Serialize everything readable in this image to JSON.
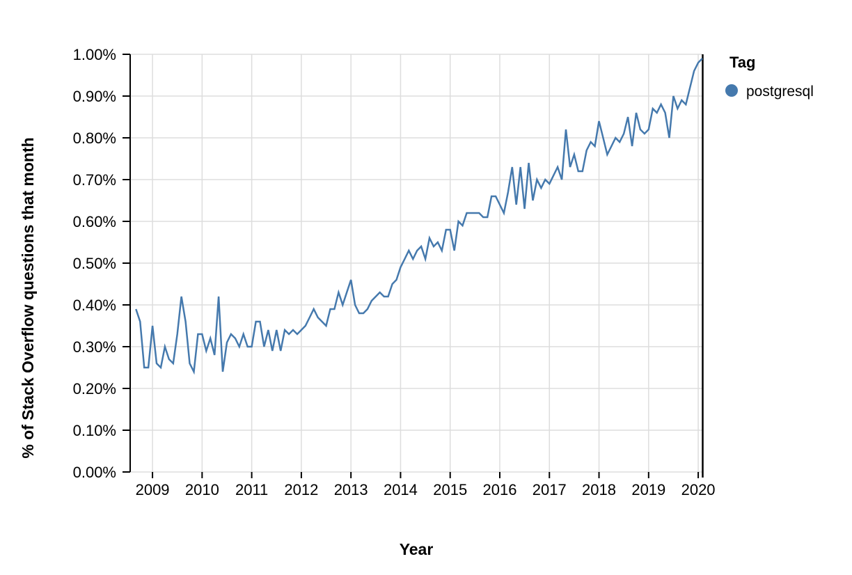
{
  "page": {
    "background": "#ffffff"
  },
  "chart_data": {
    "type": "line",
    "title": "",
    "xlabel": "Year",
    "ylabel": "% of Stack Overflow questions that month",
    "x_tick_labels": [
      "2009",
      "2010",
      "2011",
      "2012",
      "2013",
      "2014",
      "2015",
      "2016",
      "2017",
      "2018",
      "2019",
      "2020"
    ],
    "y_tick_labels": [
      "0.00%",
      "0.10%",
      "0.20%",
      "0.30%",
      "0.40%",
      "0.50%",
      "0.60%",
      "0.70%",
      "0.80%",
      "0.90%",
      "1.00%"
    ],
    "ylim": [
      0,
      1.0
    ],
    "xlim": [
      2008.55,
      2020.09
    ],
    "grid": true,
    "legend": {
      "title": "Tag",
      "position": "right-top",
      "entries": [
        {
          "label": "postgresql",
          "color": "#4579ad",
          "marker": "circle"
        }
      ]
    },
    "colors": {
      "gridline": "#dddddd",
      "axis": "#000000",
      "end_rule": "#000000",
      "text": "#000000"
    },
    "series": [
      {
        "name": "postgresql",
        "color": "#4579ad",
        "interval": "month",
        "start_year": 2008,
        "start_month": 9,
        "unit": "%",
        "values": [
          0.39,
          0.36,
          0.25,
          0.25,
          0.35,
          0.26,
          0.25,
          0.3,
          0.27,
          0.26,
          0.33,
          0.42,
          0.36,
          0.26,
          0.24,
          0.33,
          0.33,
          0.29,
          0.32,
          0.28,
          0.42,
          0.24,
          0.31,
          0.33,
          0.32,
          0.3,
          0.33,
          0.3,
          0.3,
          0.36,
          0.36,
          0.3,
          0.34,
          0.29,
          0.34,
          0.29,
          0.34,
          0.33,
          0.34,
          0.33,
          0.34,
          0.35,
          0.37,
          0.39,
          0.37,
          0.36,
          0.35,
          0.39,
          0.39,
          0.43,
          0.4,
          0.43,
          0.46,
          0.4,
          0.38,
          0.38,
          0.39,
          0.41,
          0.42,
          0.43,
          0.42,
          0.42,
          0.45,
          0.46,
          0.49,
          0.51,
          0.53,
          0.51,
          0.53,
          0.54,
          0.51,
          0.56,
          0.54,
          0.55,
          0.53,
          0.58,
          0.58,
          0.53,
          0.6,
          0.59,
          0.62,
          0.62,
          0.62,
          0.62,
          0.61,
          0.61,
          0.66,
          0.66,
          0.64,
          0.62,
          0.67,
          0.73,
          0.64,
          0.73,
          0.63,
          0.74,
          0.65,
          0.7,
          0.68,
          0.7,
          0.69,
          0.71,
          0.73,
          0.7,
          0.82,
          0.73,
          0.76,
          0.72,
          0.72,
          0.77,
          0.79,
          0.78,
          0.84,
          0.8,
          0.76,
          0.78,
          0.8,
          0.79,
          0.81,
          0.85,
          0.78,
          0.86,
          0.82,
          0.81,
          0.82,
          0.87,
          0.86,
          0.88,
          0.86,
          0.8,
          0.9,
          0.87,
          0.89,
          0.88,
          0.92,
          0.96,
          0.98,
          0.99
        ]
      }
    ]
  }
}
